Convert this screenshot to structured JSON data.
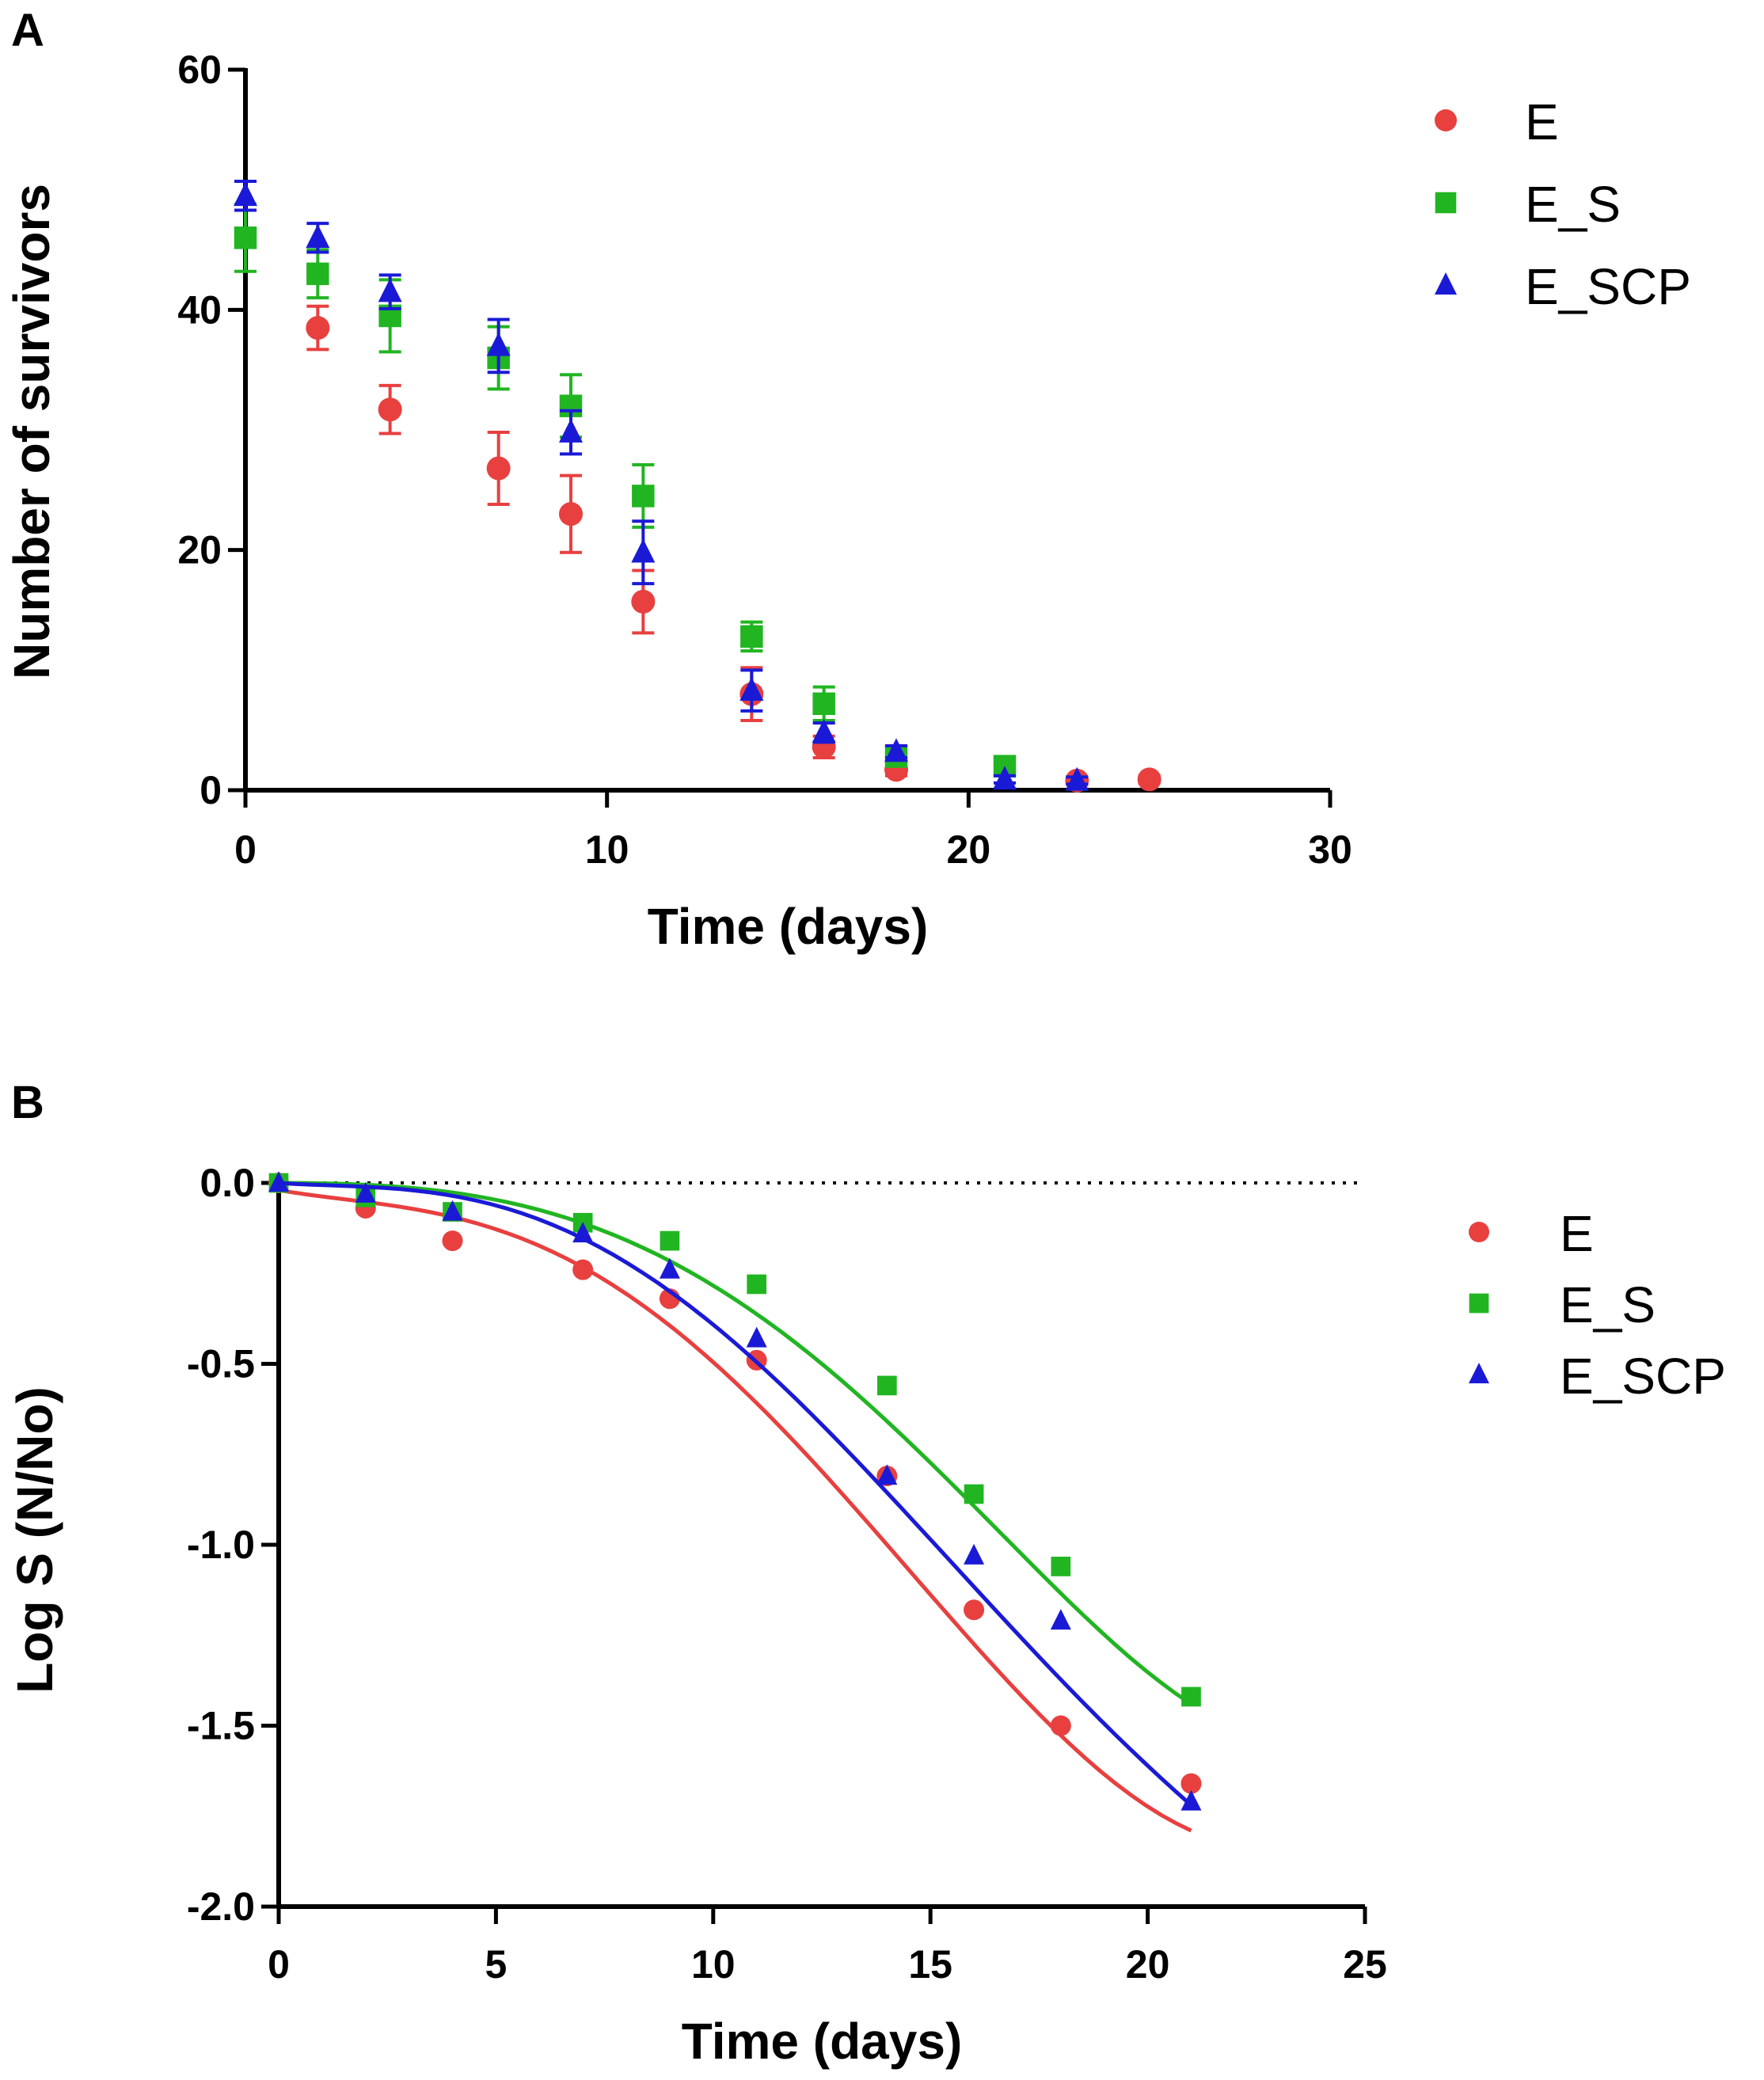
{
  "colors": {
    "E": "#e8403f",
    "E_S": "#22b522",
    "E_SCP": "#1a1ad6"
  },
  "chart_data": [
    {
      "panel": "A",
      "type": "scatter",
      "xlabel": "Time (days)",
      "ylabel": "Number of survivors",
      "xlim": [
        0,
        30
      ],
      "ylim": [
        0,
        60
      ],
      "xticks": [
        0,
        10,
        20,
        30
      ],
      "yticks": [
        0,
        20,
        40,
        60
      ],
      "grid": false,
      "legend_position": "top-right",
      "series": [
        {
          "name": "E",
          "marker": "circle",
          "points": [
            {
              "x": 2,
              "y": 38.5,
              "err": 1.8
            },
            {
              "x": 4,
              "y": 31.7,
              "err": 2.0
            },
            {
              "x": 7,
              "y": 26.8,
              "err": 3.0
            },
            {
              "x": 9,
              "y": 23.0,
              "err": 3.2
            },
            {
              "x": 11,
              "y": 15.7,
              "err": 2.6
            },
            {
              "x": 14,
              "y": 8.0,
              "err": 2.2
            },
            {
              "x": 16,
              "y": 3.6,
              "err": 0.9
            },
            {
              "x": 18,
              "y": 1.7,
              "err": 0.5
            },
            {
              "x": 23,
              "y": 0.8,
              "err": 0.3
            },
            {
              "x": 25,
              "y": 0.9,
              "err": 0.3
            }
          ]
        },
        {
          "name": "E_S",
          "marker": "square",
          "points": [
            {
              "x": 0,
              "y": 46.0,
              "err": 2.8
            },
            {
              "x": 2,
              "y": 43.0,
              "err": 2.0
            },
            {
              "x": 4,
              "y": 39.5,
              "err": 3.0
            },
            {
              "x": 7,
              "y": 36.0,
              "err": 2.6
            },
            {
              "x": 9,
              "y": 32.0,
              "err": 2.6
            },
            {
              "x": 11,
              "y": 24.5,
              "err": 2.6
            },
            {
              "x": 14,
              "y": 12.8,
              "err": 1.2
            },
            {
              "x": 16,
              "y": 7.2,
              "err": 1.4
            },
            {
              "x": 18,
              "y": 2.8,
              "err": 0.6
            },
            {
              "x": 21,
              "y": 2.0,
              "err": 0.4
            }
          ]
        },
        {
          "name": "E_SCP",
          "marker": "triangle",
          "points": [
            {
              "x": 0,
              "y": 49.5,
              "err": 1.2
            },
            {
              "x": 2,
              "y": 46.0,
              "err": 1.2
            },
            {
              "x": 4,
              "y": 41.5,
              "err": 1.4
            },
            {
              "x": 7,
              "y": 37.0,
              "err": 2.2
            },
            {
              "x": 9,
              "y": 29.8,
              "err": 1.8
            },
            {
              "x": 11,
              "y": 19.8,
              "err": 2.6
            },
            {
              "x": 14,
              "y": 8.3,
              "err": 1.7
            },
            {
              "x": 16,
              "y": 4.8,
              "err": 0.8
            },
            {
              "x": 18,
              "y": 3.2,
              "err": 0.5
            },
            {
              "x": 21,
              "y": 0.9,
              "err": 0.3
            },
            {
              "x": 23,
              "y": 0.8,
              "err": 0.3
            }
          ]
        }
      ]
    },
    {
      "panel": "B",
      "type": "scatter",
      "xlabel": "Time (days)",
      "ylabel": "Log S (N/No)",
      "xlim": [
        0,
        25
      ],
      "ylim": [
        -2.0,
        0.0
      ],
      "xticks": [
        0,
        5,
        10,
        15,
        20,
        25
      ],
      "yticks": [
        0.0,
        -0.5,
        -1.0,
        -1.5,
        -2.0
      ],
      "ytick_labels": [
        "0.0",
        "-0.5",
        "-1.0",
        "-1.5",
        "-2.0"
      ],
      "reference_line_y": 0.0,
      "grid": false,
      "legend_position": "top-right",
      "fit_x_range": [
        0,
        21
      ],
      "series": [
        {
          "name": "E",
          "marker": "circle",
          "x": [
            0,
            2,
            4,
            7,
            9,
            11,
            14,
            16,
            18,
            21
          ],
          "y": [
            0.0,
            -0.07,
            -0.16,
            -0.24,
            -0.32,
            -0.49,
            -0.81,
            -1.18,
            -1.5,
            -1.66
          ],
          "fit_y": [
            -0.02,
            -0.1,
            -0.34,
            -0.81,
            -1.38,
            -1.79
          ]
        },
        {
          "name": "E_S",
          "marker": "square",
          "x": [
            0,
            2,
            4,
            7,
            9,
            11,
            14,
            16,
            18,
            21
          ],
          "y": [
            0.0,
            -0.04,
            -0.08,
            -0.11,
            -0.16,
            -0.28,
            -0.56,
            -0.86,
            -1.06,
            -1.42
          ],
          "fit_y": [
            0.0,
            -0.03,
            -0.18,
            -0.51,
            -0.99,
            -1.44
          ]
        },
        {
          "name": "E_SCP",
          "marker": "triangle",
          "x": [
            0,
            2,
            4,
            7,
            9,
            11,
            14,
            16,
            18,
            21
          ],
          "y": [
            0.0,
            -0.03,
            -0.08,
            -0.14,
            -0.24,
            -0.43,
            -0.81,
            -1.03,
            -1.21,
            -1.71
          ],
          "fit_y": [
            0.0,
            -0.04,
            -0.25,
            -0.68,
            -1.22,
            -1.72
          ]
        }
      ]
    }
  ]
}
